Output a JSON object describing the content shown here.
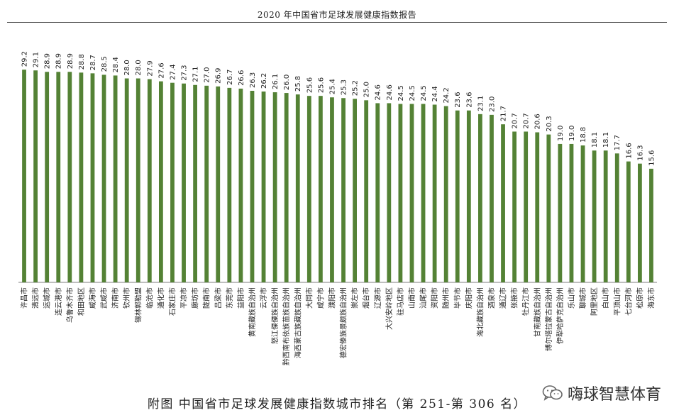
{
  "header": {
    "title": "2020 年中国省市足球发展健康指数报告"
  },
  "caption": "附图 中国省市足球发展健康指数城市排名（第 251-第 306 名）",
  "watermark": {
    "text": "嗨球智慧体育",
    "icon": "wechat-icon"
  },
  "colors": {
    "bar": "#548235",
    "axis": "#7f7f7f"
  },
  "chart_data": {
    "type": "bar",
    "title": "",
    "xlabel": "",
    "ylabel": "",
    "ylim": [
      0,
      30
    ],
    "grid": false,
    "categories": [
      "许昌市",
      "清远市",
      "运城市",
      "连云港市",
      "乌鲁木齐市",
      "和田地区",
      "威海市",
      "武威市",
      "济南市",
      "钦州市",
      "锡林郭勒盟",
      "临沧市",
      "通化市",
      "石家庄市",
      "平凉市",
      "廊坊市",
      "陇南市",
      "吕梁市",
      "东莞市",
      "益阳市",
      "黄南藏族自治州",
      "云浮市",
      "怒江傈僳族自治州",
      "黔西南布依族苗族自治州",
      "海西蒙古族藏族自治州",
      "大同市",
      "咸宁市",
      "濮阳市",
      "德宏傣族景颇族自治州",
      "崇左市",
      "烟台市",
      "辽源市",
      "大兴安岭地区",
      "驻马店市",
      "山南市",
      "汕尾市",
      "资阳市",
      "随州市",
      "毕节市",
      "庆阳市",
      "海北藏族自治州",
      "酒泉市",
      "通辽市",
      "张掖市",
      "牡丹江市",
      "甘南藏族自治州",
      "博尔塔拉蒙古自治州",
      "伊犁哈萨克自治州",
      "乐山市",
      "聊城市",
      "阿里地区",
      "白山市",
      "平顶山市",
      "七台河市",
      "松原市",
      "海东市"
    ],
    "values": [
      29.2,
      29.1,
      28.9,
      28.9,
      28.9,
      28.8,
      28.7,
      28.5,
      28.4,
      28.0,
      28.0,
      27.9,
      27.6,
      27.4,
      27.3,
      27.1,
      27.0,
      26.9,
      26.7,
      26.6,
      26.3,
      26.2,
      26.1,
      26.0,
      25.8,
      25.6,
      25.6,
      25.4,
      25.3,
      25.2,
      25.0,
      24.6,
      24.6,
      24.5,
      24.5,
      24.5,
      24.4,
      24.2,
      23.6,
      23.6,
      23.1,
      23.0,
      21.7,
      20.7,
      20.7,
      20.6,
      20.3,
      19.0,
      19.0,
      18.8,
      18.1,
      18.1,
      17.7,
      16.6,
      16.3,
      15.6
    ]
  }
}
